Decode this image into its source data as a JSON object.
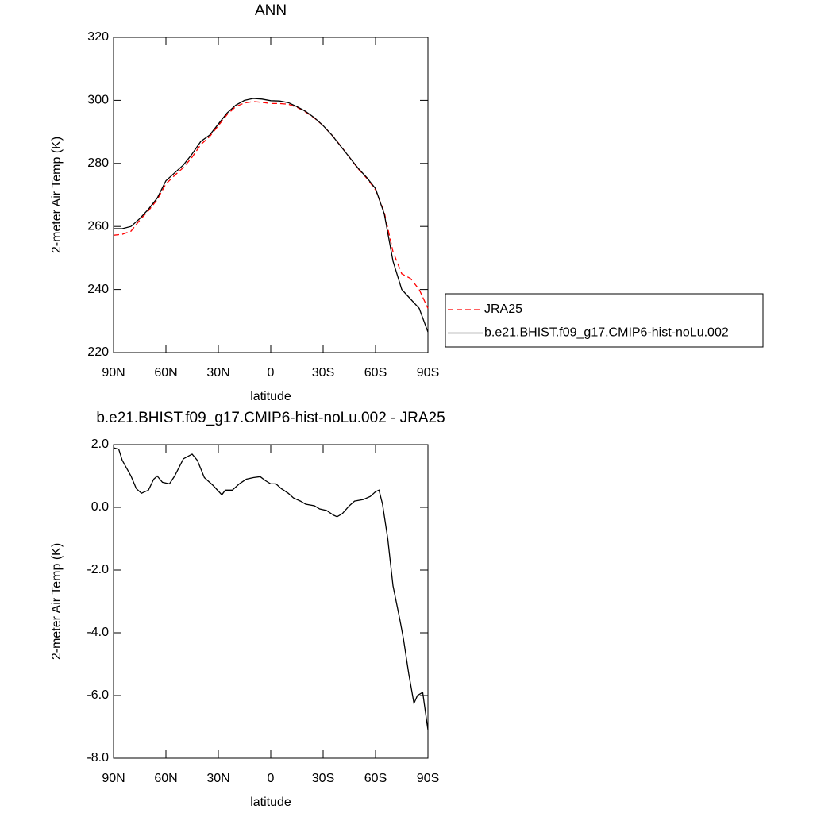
{
  "chart_data": [
    {
      "type": "line",
      "title": "ANN",
      "x_label": "latitude",
      "y_label": "2-meter Air Temp (K)",
      "x": [
        90,
        85,
        80,
        75,
        70,
        65,
        60,
        55,
        50,
        45,
        40,
        35,
        30,
        25,
        20,
        15,
        10,
        5,
        0,
        -5,
        -10,
        -15,
        -20,
        -25,
        -30,
        -35,
        -40,
        -45,
        -50,
        -55,
        -60,
        -65,
        -70,
        -75,
        -80,
        -85,
        -90
      ],
      "xlim": [
        90,
        -90
      ],
      "xticks": [
        {
          "value": 90,
          "label": "90N"
        },
        {
          "value": 60,
          "label": "60N"
        },
        {
          "value": 30,
          "label": "30N"
        },
        0,
        {
          "value": -30,
          "label": "30S"
        },
        {
          "value": -60,
          "label": "60S"
        },
        {
          "value": -90,
          "label": "90S"
        }
      ],
      "ylim": [
        220,
        320
      ],
      "yticks": [
        220,
        240,
        260,
        280,
        300,
        320
      ],
      "legend": "right",
      "series": [
        {
          "name": "JRA25",
          "color": "#ff0000",
          "dash": true,
          "values": [
            257.2,
            257.5,
            258.5,
            262,
            265,
            268.5,
            273.5,
            276.2,
            278.7,
            282,
            286,
            288.5,
            292,
            295.5,
            298,
            299.2,
            299.6,
            299.4,
            299,
            299,
            298.8,
            297.8,
            296.3,
            294.4,
            292,
            289,
            285.6,
            282,
            278.3,
            275.3,
            271.6,
            264.5,
            252,
            245,
            243.5,
            240,
            234
          ]
        },
        {
          "name": "b.e21.BHIST.f09_g17.CMIP6-hist-noLu.002",
          "color": "#000000",
          "dash": false,
          "values": [
            259.3,
            259.3,
            260,
            262.5,
            265.5,
            269,
            274.5,
            277,
            279.5,
            283,
            287,
            289,
            292.5,
            296,
            298.5,
            300,
            300.6,
            300.4,
            299.9,
            299.8,
            299.3,
            298,
            296.5,
            294.5,
            292,
            289,
            285.5,
            282,
            278.5,
            275.5,
            272,
            264,
            249,
            240,
            237,
            234,
            226.5
          ]
        }
      ]
    },
    {
      "type": "line",
      "title": "b.e21.BHIST.f09_g17.CMIP6-hist-noLu.002 - JRA25",
      "x_label": "latitude",
      "y_label": "2-meter Air Temp (K)",
      "x": [
        90,
        87,
        85,
        80,
        77,
        74,
        70,
        67,
        65,
        62,
        58,
        55,
        50,
        45,
        42,
        38,
        33,
        28,
        26,
        22,
        18,
        14,
        10,
        6,
        3,
        0,
        -3,
        -6,
        -10,
        -13,
        -17,
        -20,
        -25,
        -28,
        -32,
        -36,
        -38,
        -41,
        -45,
        -48,
        -53,
        -57,
        -60,
        -62,
        -64,
        -67,
        -70,
        -74,
        -76,
        -79,
        -82,
        -84,
        -87,
        -89,
        -90
      ],
      "xlim": [
        90,
        -90
      ],
      "xticks": [
        {
          "value": 90,
          "label": "90N"
        },
        {
          "value": 60,
          "label": "60N"
        },
        {
          "value": 30,
          "label": "30N"
        },
        0,
        {
          "value": -30,
          "label": "30S"
        },
        {
          "value": -60,
          "label": "60S"
        },
        {
          "value": -90,
          "label": "90S"
        }
      ],
      "ylim": [
        -8,
        2
      ],
      "yticks": [
        {
          "value": -8,
          "label": "-8.0"
        },
        {
          "value": -6,
          "label": "-6.0"
        },
        {
          "value": -4,
          "label": "-4.0"
        },
        {
          "value": -2,
          "label": "-2.0"
        },
        {
          "value": 0,
          "label": "0.0"
        },
        {
          "value": 2,
          "label": "2.0"
        }
      ],
      "series": [
        {
          "color": "#000000",
          "dash": false,
          "values": [
            1.9,
            1.85,
            1.5,
            1.0,
            0.6,
            0.45,
            0.55,
            0.9,
            1.0,
            0.8,
            0.75,
            1.0,
            1.55,
            1.7,
            1.5,
            0.95,
            0.7,
            0.4,
            0.55,
            0.55,
            0.75,
            0.9,
            0.95,
            0.98,
            0.85,
            0.75,
            0.75,
            0.6,
            0.45,
            0.3,
            0.2,
            0.1,
            0.05,
            -0.05,
            -0.1,
            -0.25,
            -0.3,
            -0.2,
            0.05,
            0.2,
            0.25,
            0.35,
            0.5,
            0.55,
            0.1,
            -1.0,
            -2.5,
            -3.6,
            -4.2,
            -5.3,
            -6.25,
            -6.0,
            -5.9,
            -6.7,
            -7.1
          ]
        }
      ]
    }
  ]
}
